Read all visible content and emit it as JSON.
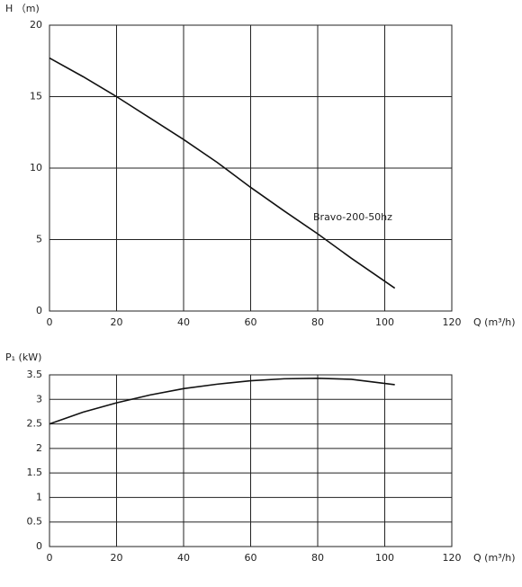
{
  "chart_data": [
    {
      "type": "line",
      "ylabel": "H （m)",
      "xlabel": "Q (m³/h)",
      "x": [
        0,
        10,
        20,
        30,
        40,
        50,
        60,
        70,
        80,
        90,
        103
      ],
      "series": [
        {
          "name": "Bravo-200-50hz",
          "color": "#111111",
          "values": [
            17.7,
            16.4,
            15.0,
            13.5,
            12.0,
            10.4,
            8.65,
            7.0,
            5.4,
            3.7,
            1.6
          ]
        }
      ],
      "xlim": [
        0,
        120
      ],
      "ylim": [
        0,
        20
      ],
      "xticks": [
        0,
        20,
        40,
        60,
        80,
        100,
        120
      ],
      "yticks": [
        0,
        5,
        10,
        15,
        20
      ],
      "grid": true
    },
    {
      "type": "line",
      "ylabel": "P₁ (kW)",
      "xlabel": "Q (m³/h)",
      "x": [
        0,
        10,
        20,
        30,
        40,
        50,
        60,
        70,
        80,
        90,
        103
      ],
      "series": [
        {
          "color": "#111111",
          "values": [
            2.5,
            2.74,
            2.93,
            3.09,
            3.22,
            3.31,
            3.38,
            3.42,
            3.43,
            3.41,
            3.3
          ]
        }
      ],
      "xlim": [
        0,
        120
      ],
      "ylim": [
        0,
        3.5
      ],
      "xticks": [
        0,
        20,
        40,
        60,
        80,
        100,
        120
      ],
      "yticks": [
        0,
        0.5,
        1,
        1.5,
        2,
        2.5,
        3,
        3.5
      ],
      "grid": true
    }
  ]
}
